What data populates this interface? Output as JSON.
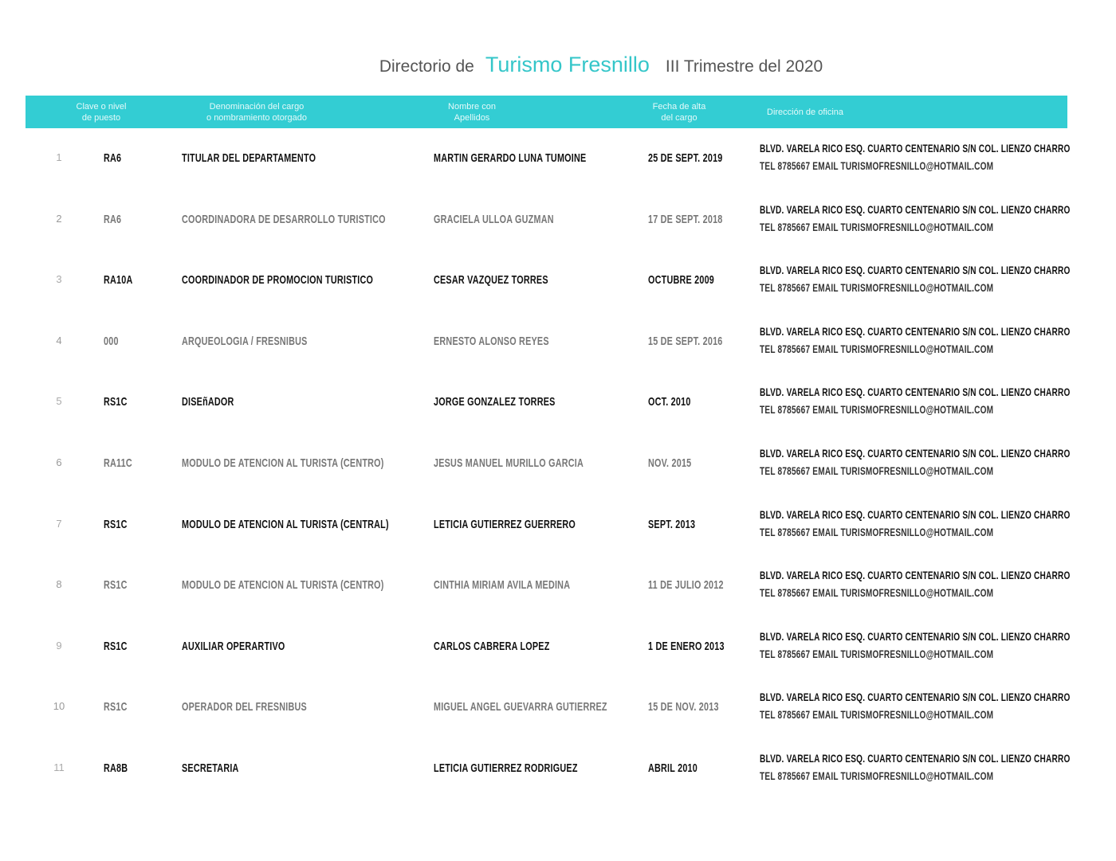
{
  "title": {
    "prefix": "Directorio de",
    "brand": "Turismo Fresnillo",
    "suffix": "III  Trimestre del 2020"
  },
  "header": {
    "clave": [
      "Clave o nivel",
      "de puesto"
    ],
    "cargo": [
      "Denominación del cargo",
      "o nombramiento otorgado"
    ],
    "nombre": [
      "Nombre con",
      "Apellidos"
    ],
    "fecha": [
      "Fecha de alta",
      "del cargo"
    ],
    "direccion": "Dirección de oficina"
  },
  "address": {
    "line1": "BLVD. VARELA RICO ESQ. CUARTO CENTENARIO S/N COL. LIENZO CHARRO",
    "line2": "TEL 8785667   EMAIL TURISMOFRESNILLO@HOTMAIL.COM"
  },
  "rows": [
    {
      "n": "1",
      "clave": "RA6",
      "cargo": "TITULAR DEL DEPARTAMENTO",
      "nombre": "MARTIN GERARDO LUNA TUMOINE",
      "fecha": "25 DE SEPT. 2019"
    },
    {
      "n": "2",
      "clave": "RA6",
      "cargo": "COORDINADORA DE DESARROLLO TURISTICO",
      "nombre": "GRACIELA ULLOA GUZMAN",
      "fecha": "17 DE SEPT. 2018"
    },
    {
      "n": "3",
      "clave": "RA10A",
      "cargo": "COORDINADOR DE PROMOCION TURISTICO",
      "nombre": "CESAR VAZQUEZ TORRES",
      "fecha": "OCTUBRE 2009"
    },
    {
      "n": "4",
      "clave": "000",
      "cargo": "ARQUEOLOGIA / FRESNIBUS",
      "nombre": "ERNESTO ALONSO REYES",
      "fecha": "15 DE SEPT. 2016"
    },
    {
      "n": "5",
      "clave": "RS1C",
      "cargo": "DISEñADOR",
      "nombre": "JORGE GONZALEZ TORRES",
      "fecha": "OCT. 2010"
    },
    {
      "n": "6",
      "clave": "RA11C",
      "cargo": "MODULO DE ATENCION AL TURISTA  (CENTRO)",
      "nombre": "JESUS MANUEL MURILLO GARCIA",
      "fecha": "NOV. 2015"
    },
    {
      "n": "7",
      "clave": "RS1C",
      "cargo": "MODULO DE ATENCION AL TURISTA  (CENTRAL)",
      "nombre": "LETICIA GUTIERREZ GUERRERO",
      "fecha": "SEPT. 2013"
    },
    {
      "n": "8",
      "clave": "RS1C",
      "cargo": "MODULO DE ATENCION AL TURISTA  (CENTRO)",
      "nombre": "CINTHIA MIRIAM AVILA MEDINA",
      "fecha": "11 DE JULIO 2012"
    },
    {
      "n": "9",
      "clave": "RS1C",
      "cargo": "AUXILIAR OPERARTIVO",
      "nombre": "CARLOS CABRERA LOPEZ",
      "fecha": "1 DE ENERO 2013"
    },
    {
      "n": "10",
      "clave": "RS1C",
      "cargo": "OPERADOR DEL FRESNIBUS",
      "nombre": "MIGUEL ANGEL GUEVARRA GUTIERREZ",
      "fecha": "15 DE NOV. 2013"
    },
    {
      "n": "11",
      "clave": "RA8B",
      "cargo": "SECRETARIA",
      "nombre": "LETICIA GUTIERREZ RODRIGUEZ",
      "fecha": "ABRIL 2010"
    }
  ],
  "colors": {
    "accent": "#33cdd3",
    "brand": "#35c6c9"
  }
}
